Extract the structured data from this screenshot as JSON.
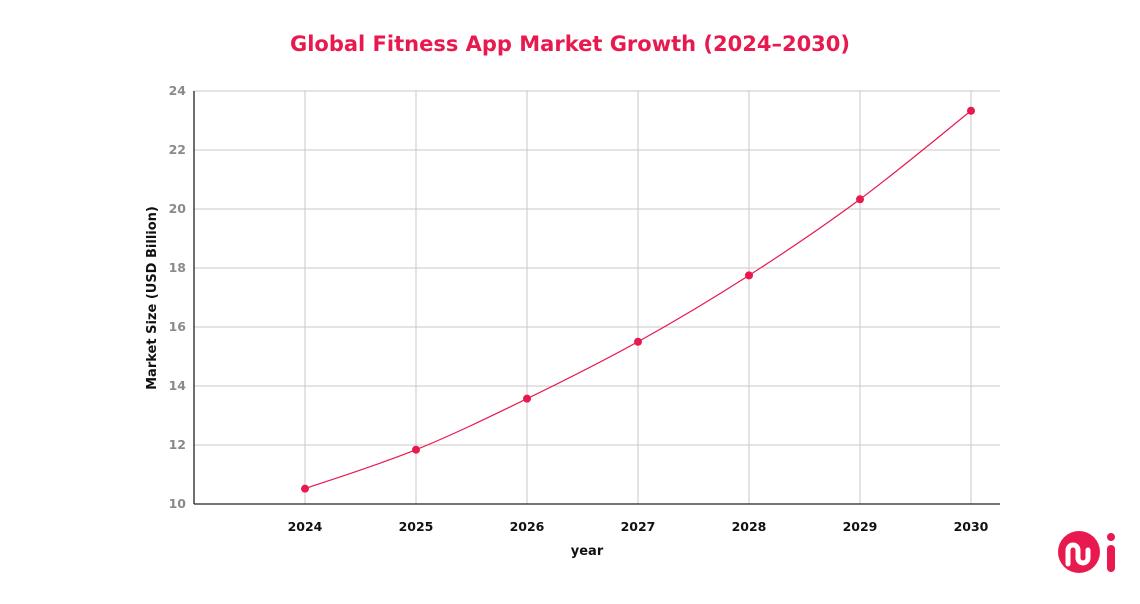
{
  "chart_data": {
    "type": "line",
    "title": "Global Fitness App Market Growth (2024–2030)",
    "xlabel": "year",
    "ylabel": "Market Size (USD Billion)",
    "categories": [
      "2024",
      "2025",
      "2026",
      "2027",
      "2028",
      "2029",
      "2030"
    ],
    "values": [
      10.52,
      11.84,
      13.57,
      15.5,
      17.75,
      20.33,
      23.33
    ],
    "ylim": [
      10,
      24
    ],
    "yticks": [
      "10",
      "12",
      "14",
      "16",
      "18",
      "20",
      "22",
      "24"
    ],
    "grid": true,
    "smooth": true,
    "line_color": "#e8194f",
    "marker_color": "#e8194f"
  },
  "logo": {
    "text": "mi",
    "color": "#e8194f"
  }
}
